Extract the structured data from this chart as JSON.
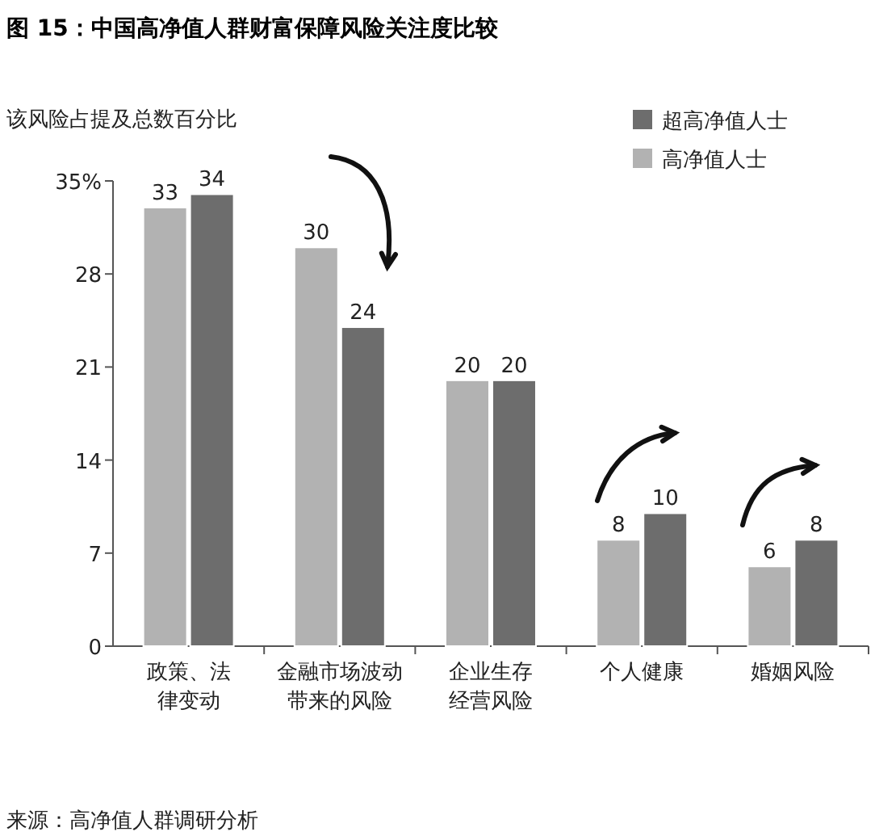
{
  "chart_data": {
    "type": "bar",
    "title": "图 15：中国高净值人群财富保障风险关注度比较",
    "ylabel": "该风险占提及总数百分比",
    "categories": [
      "政策、法律变动",
      "金融市场波动带来的风险",
      "企业生存经营风险",
      "个人健康",
      "婚姻风险"
    ],
    "series": [
      {
        "name": "高净值人士",
        "color": "#b2b2b2",
        "values": [
          33,
          30,
          20,
          8,
          6
        ]
      },
      {
        "name": "超高净值人士",
        "color": "#6d6d6d",
        "values": [
          34,
          24,
          20,
          10,
          8
        ]
      }
    ],
    "ylim": [
      0,
      35
    ],
    "yticks": [
      0,
      7,
      14,
      21,
      28,
      {
        "value": 35,
        "label": "35%"
      }
    ],
    "data_labels": true,
    "grid": false,
    "legend": "top right",
    "annotations": [
      "来源：高净值人群调研分析"
    ]
  }
}
